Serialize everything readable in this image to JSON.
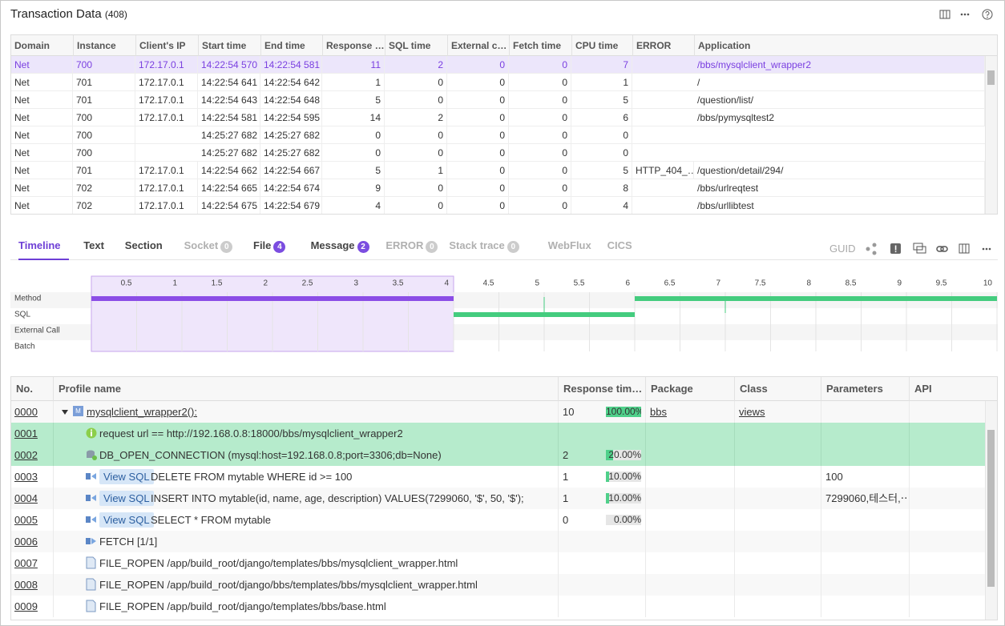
{
  "header": {
    "title": "Transaction Data",
    "count": "(408)"
  },
  "transactions": {
    "columns": [
      "Domain",
      "Instance",
      "Client's IP",
      "Start time",
      "End time",
      "Response …",
      "SQL time",
      "External c…",
      "Fetch time",
      "CPU time",
      "ERROR",
      "Application"
    ],
    "rows": [
      [
        "Net",
        700,
        "172.17.0.1",
        "14:22:54 570",
        "14:22:54 581",
        11,
        2,
        0,
        0,
        7,
        null,
        "/bbs/mysqlclient_wrapper2"
      ],
      [
        "Net",
        701,
        "172.17.0.1",
        "14:22:54 641",
        "14:22:54 642",
        1,
        0,
        0,
        0,
        1,
        null,
        "/"
      ],
      [
        "Net",
        701,
        "172.17.0.1",
        "14:22:54 643",
        "14:22:54 648",
        5,
        0,
        0,
        0,
        5,
        null,
        "/question/list/"
      ],
      [
        "Net",
        700,
        "172.17.0.1",
        "14:22:54 581",
        "14:22:54 595",
        14,
        2,
        0,
        0,
        6,
        null,
        "/bbs/pymysqltest2"
      ],
      [
        "Net",
        700,
        null,
        "14:25:27 682",
        "14:25:27 682",
        0,
        0,
        0,
        0,
        0,
        null,
        null
      ],
      [
        "Net",
        700,
        null,
        "14:25:27 682",
        "14:25:27 682",
        0,
        0,
        0,
        0,
        0,
        null,
        null
      ],
      [
        "Net",
        701,
        "172.17.0.1",
        "14:22:54 662",
        "14:22:54 667",
        5,
        1,
        0,
        0,
        5,
        "HTTP_404_…",
        "/question/detail/294/"
      ],
      [
        "Net",
        702,
        "172.17.0.1",
        "14:22:54 665",
        "14:22:54 674",
        9,
        0,
        0,
        0,
        8,
        null,
        "/bbs/urlreqtest"
      ],
      [
        "Net",
        702,
        "172.17.0.1",
        "14:22:54 675",
        "14:22:54 679",
        4,
        0,
        0,
        0,
        4,
        null,
        "/bbs/urllibtest"
      ]
    ]
  },
  "tabs": [
    {
      "label": "Timeline"
    },
    {
      "label": "Text"
    },
    {
      "label": "Section"
    },
    {
      "label": "Socket",
      "count": 0
    },
    {
      "label": "File",
      "count": 4
    },
    {
      "label": "Message",
      "count": 2
    },
    {
      "label": "ERROR",
      "count": 0
    },
    {
      "label": "Stack trace",
      "count": 0
    },
    {
      "label": "WebFlux"
    },
    {
      "label": "CICS"
    }
  ],
  "guid": "GUID",
  "timeline": {
    "xlim": [
      0,
      10
    ],
    "xticks": [
      0.5,
      1,
      1.5,
      2,
      2.5,
      3,
      3.5,
      4,
      4.5,
      5,
      5.5,
      6,
      6.5,
      7,
      7.5,
      8,
      8.5,
      9,
      9.5,
      10
    ],
    "rows": [
      "Method",
      "SQL",
      "External Call",
      "Batch"
    ],
    "selection": [
      0,
      4
    ],
    "segments": [
      {
        "row": 0,
        "start": 0,
        "end": 4,
        "color": "#8b4de6"
      },
      {
        "row": 1,
        "start": 4,
        "end": 6,
        "color": "#44cc7e"
      },
      {
        "row": 0,
        "start": 6,
        "end": 10,
        "color": "#44cc7e"
      }
    ],
    "markers": [
      5,
      7
    ]
  },
  "profile": {
    "columns": [
      "No.",
      "Profile name",
      "Response tim…",
      "Package",
      "Class",
      "Parameters",
      "API"
    ],
    "rows": [
      {
        "no": "0000",
        "name": "mysqlclient_wrapper2():",
        "response": 10,
        "percent": 100,
        "percent_label": "100.00%",
        "package": "bbs",
        "class": "views"
      },
      {
        "no": "0001",
        "name": "request url == http://192.168.0.8:18000/bbs/mysqlclient_wrapper2"
      },
      {
        "no": "0002",
        "name": "DB_OPEN_CONNECTION (mysql:host=192.168.0.8;port=3306;db=None)",
        "response": 2,
        "percent": 20,
        "percent_label": "20.00%"
      },
      {
        "no": "0003",
        "tag": "View SQL",
        "name": "DELETE FROM mytable WHERE id >= 100",
        "response": 1,
        "percent": 10,
        "percent_label": "10.00%",
        "parameters": "100"
      },
      {
        "no": "0004",
        "tag": "View SQL",
        "name": "INSERT INTO mytable(id, name, age, description) VALUES(7299060, '$', 50, '$');",
        "response": 1,
        "percent": 10,
        "percent_label": "10.00%",
        "parameters": "7299060,테스터,⋯"
      },
      {
        "no": "0005",
        "tag": "View SQL",
        "name": "SELECT * FROM mytable",
        "response": 0,
        "percent": 0,
        "percent_label": "0.00%"
      },
      {
        "no": "0006",
        "name": "FETCH [1/1]"
      },
      {
        "no": "0007",
        "name": "FILE_ROPEN /app/build_root/django/templates/bbs/mysqlclient_wrapper.html"
      },
      {
        "no": "0008",
        "name": "FILE_ROPEN /app/build_root/django/bbs/templates/bbs/mysqlclient_wrapper.html"
      },
      {
        "no": "0009",
        "name": "FILE_ROPEN /app/build_root/django/templates/bbs/base.html"
      }
    ]
  }
}
